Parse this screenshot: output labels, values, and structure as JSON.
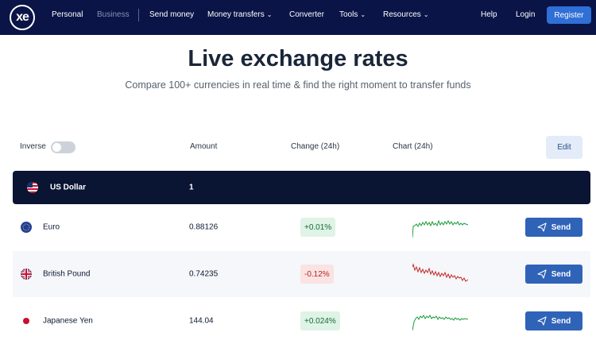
{
  "nav": {
    "logo_text": "xe",
    "personal": "Personal",
    "business": "Business",
    "send_money": "Send money",
    "money_transfers": "Money transfers",
    "converter": "Converter",
    "tools": "Tools",
    "resources": "Resources",
    "help": "Help",
    "login": "Login",
    "register": "Register"
  },
  "hero": {
    "title": "Live exchange rates",
    "subtitle": "Compare 100+ currencies in real time & find the right moment to transfer funds"
  },
  "table": {
    "inverse_label": "Inverse",
    "inverse_on": false,
    "headers": {
      "amount": "Amount",
      "change": "Change (24h)",
      "chart": "Chart (24h)"
    },
    "edit_label": "Edit",
    "base": {
      "name": "US Dollar",
      "amount": "1",
      "flag": "us-flag-icon"
    },
    "rows": [
      {
        "name": "Euro",
        "amount": "0.88126",
        "change": "+0.01%",
        "trend": "up",
        "send": "Send",
        "flag": "eu-flag-icon",
        "spark_color": "#1a9a3a"
      },
      {
        "name": "British Pound",
        "amount": "0.74235",
        "change": "-0.12%",
        "trend": "down",
        "send": "Send",
        "flag": "uk-flag-icon",
        "spark_color": "#c62828"
      },
      {
        "name": "Japanese Yen",
        "amount": "144.04",
        "change": "+0.024%",
        "trend": "up",
        "send": "Send",
        "flag": "jp-flag-icon",
        "spark_color": "#1a9a3a"
      }
    ]
  },
  "colors": {
    "nav_bg": "#0a1447",
    "accent": "#2f6fd6",
    "send_bg": "#2f63b8",
    "up": "#136b33",
    "down": "#b32525"
  }
}
